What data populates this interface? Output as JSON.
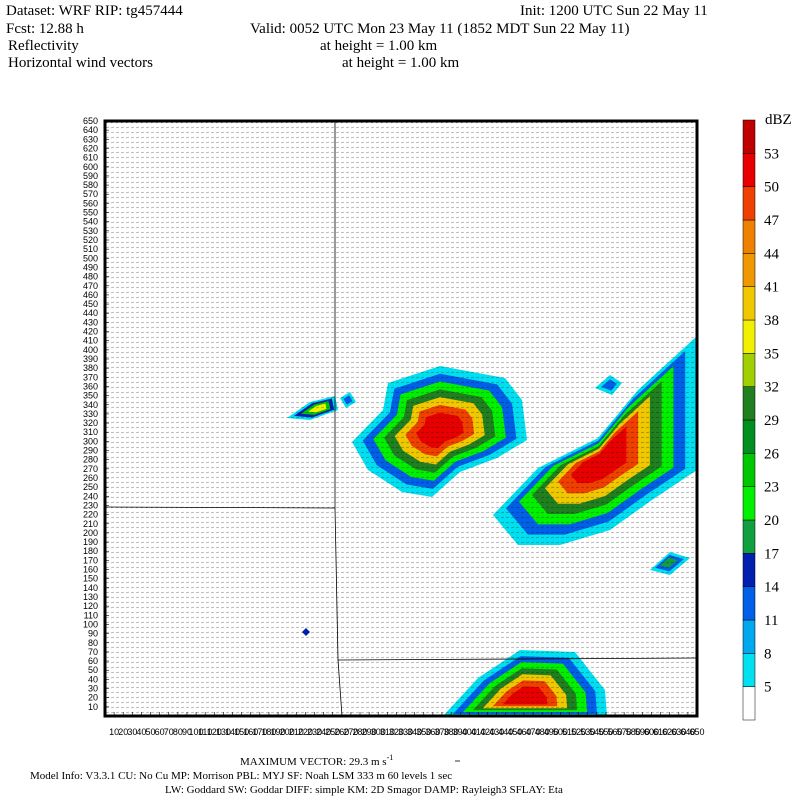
{
  "header": {
    "dataset": "Dataset: WRF  RIP: tg457444",
    "init": "Init: 1200 UTC Sun 22 May 11",
    "fcst": "Fcst:   12.88 h",
    "valid": "Valid: 0052 UTC Mon 23 May 11 (1852 MDT Sun 22 May 11)",
    "field1": "Reflectivity",
    "field1_height": "at height =  1.00 km",
    "field2": "Horizontal wind vectors",
    "field2_height": "at height =  1.00 km"
  },
  "axes": {
    "ylim": [
      0,
      650
    ],
    "xlim": [
      0,
      650
    ],
    "yticks": [
      10,
      20,
      30,
      40,
      50,
      60,
      70,
      80,
      90,
      100,
      110,
      120,
      130,
      140,
      150,
      160,
      170,
      180,
      190,
      200,
      210,
      220,
      230,
      240,
      250,
      260,
      270,
      280,
      290,
      300,
      310,
      320,
      330,
      340,
      350,
      360,
      370,
      380,
      390,
      400,
      410,
      420,
      430,
      440,
      450,
      460,
      470,
      480,
      490,
      500,
      510,
      520,
      530,
      540,
      550,
      560,
      570,
      580,
      590,
      600,
      610,
      620,
      630,
      640,
      650
    ],
    "xticks": [
      10,
      20,
      30,
      40,
      50,
      60,
      70,
      80,
      90,
      100,
      110,
      120,
      130,
      140,
      150,
      160,
      170,
      180,
      190,
      200,
      210,
      220,
      230,
      240,
      250,
      260,
      270,
      280,
      290,
      300,
      310,
      320,
      330,
      340,
      350,
      360,
      370,
      380,
      390,
      400,
      410,
      420,
      430,
      440,
      450,
      460,
      470,
      480,
      490,
      500,
      510,
      520,
      530,
      540,
      550,
      560,
      570,
      580,
      590,
      600,
      610,
      620,
      630,
      640,
      650
    ]
  },
  "colorbar": {
    "unit": "dBZ",
    "levels": [
      5,
      8,
      11,
      14,
      17,
      20,
      23,
      26,
      29,
      32,
      35,
      38,
      41,
      44,
      47,
      50,
      53
    ],
    "colors": [
      "#ffffff",
      "#00e0f0",
      "#00a8f0",
      "#0060e8",
      "#0020b0",
      "#10a040",
      "#00f000",
      "#00c800",
      "#009020",
      "#208020",
      "#a0d000",
      "#f0f000",
      "#f0c800",
      "#f09800",
      "#f08000",
      "#f04000",
      "#e80000",
      "#c00000"
    ]
  },
  "footer": {
    "max_vector_label": "MAXIMUM VECTOR:",
    "max_vector_value": "29.3 m s",
    "max_vector_exp": "-1",
    "model_info": "Model Info: V3.3.1    CU: No Cu    MP: Morrison    PBL: MYJ      SF: Noah LSM     333 m    60 levels     1 sec",
    "model_info2": "LW: Goddard  SW: Goddar  DIFF: simple  KM: 2D Smagor  DAMP: Rayleigh3   SFLAY: Eta"
  }
}
